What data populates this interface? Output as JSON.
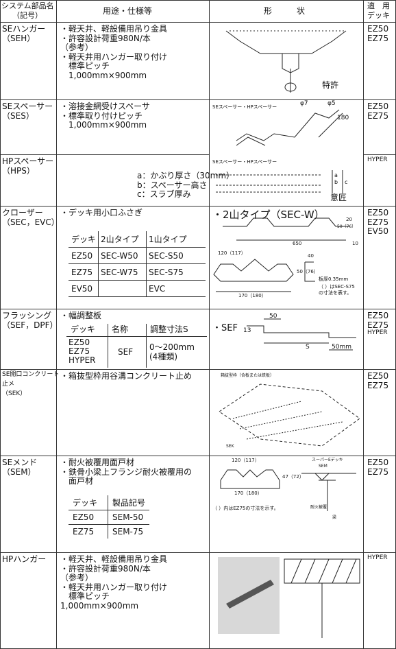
{
  "header": {
    "name": [
      "システム部品名",
      "（記号）"
    ],
    "spec": "用途・仕様等",
    "shape": "形　　　状",
    "deck": [
      "適　用",
      "デッキ"
    ]
  },
  "rows": [
    {
      "name": [
        "SEハンガー",
        "（SEH）"
      ],
      "spec": [
        "・軽天井、軽設備用吊り金具",
        "・許容設計荷重980N/本",
        "（参考）",
        "・軽天井用ハンガー取り付け",
        "　標準ピッチ",
        "　1,000mm×900mm"
      ],
      "decks": [
        "EZ50",
        "EZ75"
      ],
      "figure": [
        "特許"
      ]
    },
    {
      "name": [
        "SEスペーサー",
        "（SES）"
      ],
      "spec": [
        "・溶接金網受けスペーサ",
        "・標準取り付けピッチ",
        "　1,000mm×900mm"
      ],
      "decks": [
        "EZ50",
        "EZ75"
      ],
      "figure": [
        "SEスペーサー・HPスペーサー",
        "φ7",
        "φ5",
        "180"
      ]
    },
    {
      "name": [
        "HPスペーサー",
        "（HPS）"
      ],
      "spec": [
        "a：かぶり厚さ（30mm）",
        "b：スペーサー高さ",
        "c：スラブ厚み"
      ],
      "decks": [
        "HYPER"
      ],
      "figure": [
        "SEスペーサー・HPスペーサー",
        "a",
        "b",
        "c",
        "意匠"
      ]
    },
    {
      "name": [
        "クローザー",
        "（SEC，EVC）"
      ],
      "spec": [
        "・デッキ用小口ふさぎ"
      ],
      "table": [
        [
          "デッキ",
          "2山タイプ",
          "1山タイプ"
        ],
        [
          "EZ50",
          "SEC-W50",
          "SEC-S50"
        ],
        [
          "EZ75",
          "SEC-W75",
          "SEC-S75"
        ],
        [
          "EV50",
          null,
          "EVC"
        ]
      ],
      "decks": [
        "EZ50",
        "EZ75",
        "EV50"
      ],
      "figure": [
        "・2山タイプ（SEC-W）",
        "20",
        "50（76）",
        "650",
        "10",
        "120（117）",
        "40",
        "50（76）",
        "板厚0.35mm",
        "（ ）はSEC-S75",
        "の寸法を表す。",
        "170（180）"
      ]
    },
    {
      "name": [
        "フラッシング",
        "（SEF，DPF）"
      ],
      "spec": [
        "・幅調整板"
      ],
      "table": {
        "head": [
          "デッキ",
          "名称",
          "調整寸法S"
        ],
        "decks": [
          "EZ50",
          "EZ75",
          "HYPER"
        ],
        "name": "SEF",
        "adjust": [
          "0～200mm",
          "(4種類)"
        ]
      },
      "decks": [
        "EZ50",
        "EZ75",
        "HYPER"
      ],
      "figure": [
        "・SEF",
        "50",
        "13",
        "S",
        "50mm"
      ]
    },
    {
      "name": [
        "SE開口コンクリート",
        "止メ",
        "（SEK）"
      ],
      "spec": [
        "・箱抜型枠用谷溝コンクリート止め"
      ],
      "decks": [
        "EZ50",
        "EZ75"
      ],
      "figure": [
        "箱抜型枠（合板または鉄板）",
        "SEK"
      ]
    },
    {
      "name": [
        "SEメンド",
        "（SEM）"
      ],
      "spec": [
        "・耐火被覆用面戸材",
        "・鉄骨小梁上フランジ耐火被覆用の",
        "　面戸材"
      ],
      "table": [
        [
          "デッキ",
          "製品記号"
        ],
        [
          "EZ50",
          "SEM-50"
        ],
        [
          "EZ75",
          "SEM-75"
        ]
      ],
      "decks": [
        "EZ50",
        "EZ75"
      ],
      "figure": [
        "120（117）",
        "47（72）",
        "170（180）",
        "（ ）内はEZ75の寸法を示す。",
        "スーパーEデッキ",
        "SEM",
        "耐火被覆",
        "梁"
      ]
    },
    {
      "name": [
        "HPハンガー"
      ],
      "spec": [
        "・軽天井、軽設備用吊り金具",
        "・許容設計荷重980N/本",
        "（参考）",
        "・軽天井用ハンガー取り付け",
        "　標準ピッチ",
        "1,000mm×900mm"
      ],
      "decks": [
        "HYPER"
      ]
    }
  ]
}
